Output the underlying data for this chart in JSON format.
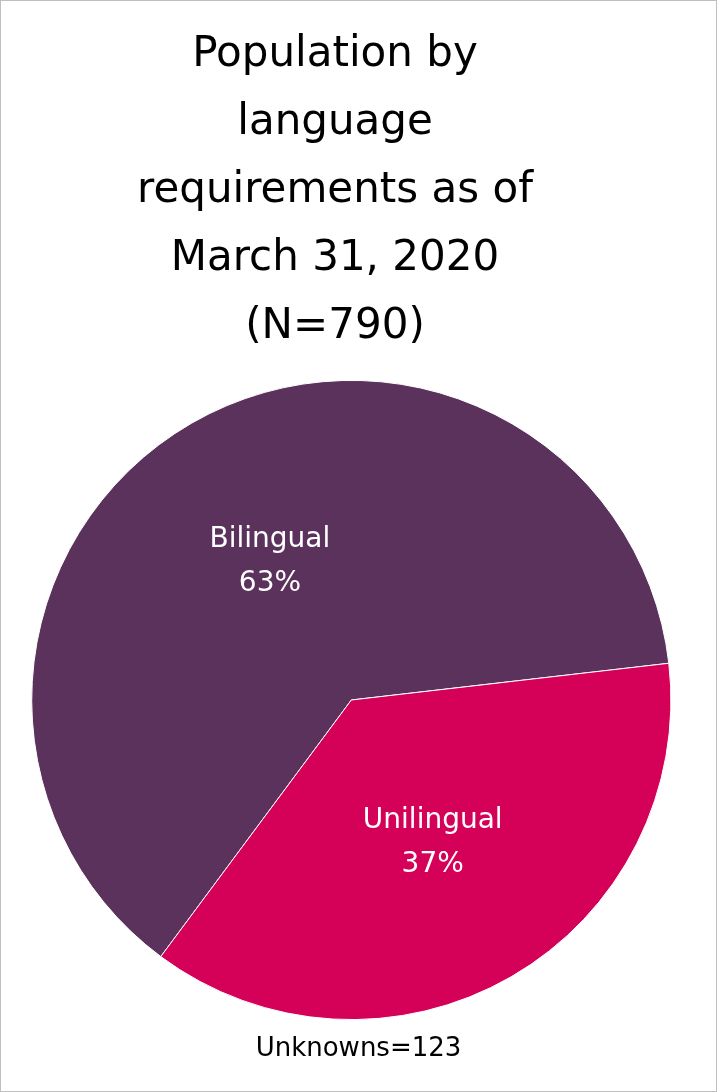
{
  "chart_data": {
    "type": "pie",
    "title": "Population by language requirements as of March 31, 2020 (N=790)",
    "categories": [
      "Bilingual",
      "Unilingual"
    ],
    "values": [
      63,
      37
    ],
    "colors": [
      "#5a325c",
      "#d50057"
    ],
    "value_labels": [
      "63%",
      "37%"
    ],
    "legend": false,
    "annotations": [
      "Unknowns=123"
    ]
  }
}
